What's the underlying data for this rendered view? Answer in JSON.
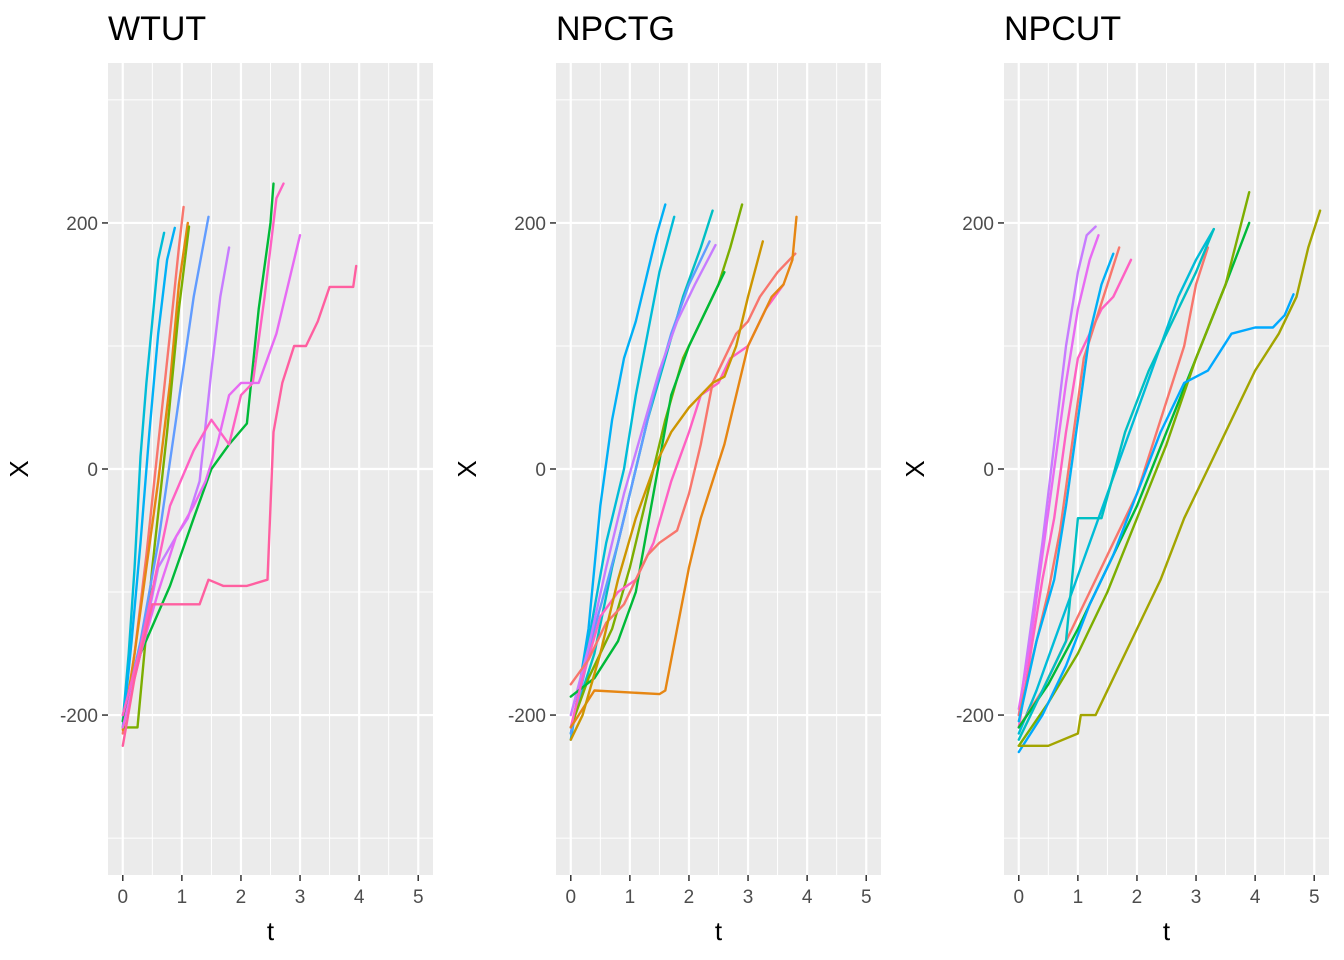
{
  "chart_data": [
    {
      "type": "line",
      "title": "WTUT",
      "xlabel": "t",
      "ylabel": "X",
      "xlim": [
        -0.25,
        5.25
      ],
      "ylim": [
        -330,
        330
      ],
      "xticks": [
        0,
        1,
        2,
        3,
        4,
        5
      ],
      "yticks": [
        -200,
        0,
        200
      ],
      "grid": true,
      "legend": "none",
      "series": [
        {
          "color": "#00BCD8",
          "x": [
            0,
            0.1,
            0.2,
            0.3,
            0.4,
            0.5,
            0.6,
            0.7
          ],
          "y": [
            -205,
            -150,
            -80,
            10,
            70,
            120,
            170,
            192
          ]
        },
        {
          "color": "#00B0F6",
          "x": [
            0,
            0.15,
            0.3,
            0.45,
            0.6,
            0.75,
            0.88
          ],
          "y": [
            -210,
            -140,
            -60,
            30,
            110,
            170,
            196
          ]
        },
        {
          "color": "#F8766D",
          "x": [
            0,
            0.2,
            0.4,
            0.6,
            0.8,
            0.95,
            1.03
          ],
          "y": [
            -215,
            -150,
            -70,
            20,
            110,
            180,
            213
          ]
        },
        {
          "color": "#E68613",
          "x": [
            0,
            0.2,
            0.4,
            0.6,
            0.8,
            0.95,
            1.1
          ],
          "y": [
            -212,
            -150,
            -80,
            -10,
            70,
            150,
            200
          ]
        },
        {
          "color": "#7CAE00",
          "x": [
            0,
            0.25,
            0.5,
            0.75,
            0.95,
            1.12
          ],
          "y": [
            -210,
            -210,
            -80,
            30,
            130,
            197
          ]
        },
        {
          "color": "#619CFF",
          "x": [
            0,
            0.3,
            0.6,
            0.9,
            1.2,
            1.45
          ],
          "y": [
            -205,
            -140,
            -60,
            40,
            140,
            205
          ]
        },
        {
          "color": "#C77CFF",
          "x": [
            0,
            0.3,
            0.6,
            0.9,
            1.1,
            1.3,
            1.5,
            1.65,
            1.8
          ],
          "y": [
            -200,
            -150,
            -80,
            -55,
            -40,
            -10,
            80,
            140,
            180
          ]
        },
        {
          "color": "#00BA38",
          "x": [
            0,
            0.3,
            0.8,
            1.2,
            1.5,
            1.8,
            2.1,
            2.3,
            2.5,
            2.55
          ],
          "y": [
            -205,
            -150,
            -95,
            -40,
            0,
            20,
            37,
            130,
            200,
            232
          ]
        },
        {
          "color": "#FF61C3",
          "x": [
            0,
            0.3,
            0.8,
            1.2,
            1.5,
            1.8,
            2.0,
            2.2,
            2.4,
            2.5,
            2.6,
            2.72
          ],
          "y": [
            -200,
            -145,
            -30,
            15,
            40,
            20,
            60,
            70,
            140,
            180,
            220,
            232
          ]
        },
        {
          "color": "#E76BF3",
          "x": [
            0,
            0.3,
            0.6,
            0.9,
            1.2,
            1.4,
            1.6,
            1.8,
            2.0,
            2.3,
            2.6,
            2.8,
            3.0
          ],
          "y": [
            -210,
            -150,
            -100,
            -55,
            -30,
            -10,
            20,
            60,
            70,
            70,
            110,
            150,
            190
          ]
        },
        {
          "color": "#FF5FA0",
          "x": [
            0,
            0.2,
            0.5,
            1.3,
            1.45,
            1.7,
            2.1,
            2.45,
            2.55,
            2.7,
            2.9,
            3.1,
            3.3,
            3.5,
            3.7,
            3.9,
            3.95
          ],
          "y": [
            -225,
            -170,
            -110,
            -110,
            -90,
            -95,
            -95,
            -90,
            30,
            70,
            100,
            100,
            120,
            148,
            148,
            148,
            165
          ]
        }
      ]
    },
    {
      "type": "line",
      "title": "NPCTG",
      "xlabel": "t",
      "ylabel": "X",
      "xlim": [
        -0.25,
        5.25
      ],
      "ylim": [
        -330,
        330
      ],
      "xticks": [
        0,
        1,
        2,
        3,
        4,
        5
      ],
      "yticks": [
        -200,
        0,
        200
      ],
      "grid": true,
      "legend": "none",
      "series": [
        {
          "color": "#00B0F6",
          "x": [
            0,
            0.3,
            0.5,
            0.7,
            0.9,
            1.1,
            1.3,
            1.45,
            1.6
          ],
          "y": [
            -220,
            -130,
            -30,
            40,
            90,
            120,
            160,
            190,
            215
          ]
        },
        {
          "color": "#00BCD8",
          "x": [
            0,
            0.3,
            0.6,
            0.9,
            1.1,
            1.3,
            1.5,
            1.75
          ],
          "y": [
            -215,
            -140,
            -60,
            0,
            60,
            110,
            160,
            205
          ]
        },
        {
          "color": "#00BFC4",
          "x": [
            0,
            0.4,
            0.7,
            1.0,
            1.3,
            1.6,
            1.9,
            2.2,
            2.4
          ],
          "y": [
            -210,
            -150,
            -80,
            -20,
            40,
            90,
            140,
            180,
            210
          ]
        },
        {
          "color": "#619CFF",
          "x": [
            0,
            0.4,
            0.8,
            1.1,
            1.4,
            1.7,
            2.0,
            2.2,
            2.35
          ],
          "y": [
            -215,
            -130,
            -60,
            0,
            60,
            110,
            150,
            170,
            185
          ]
        },
        {
          "color": "#C77CFF",
          "x": [
            0,
            0.3,
            0.6,
            0.9,
            1.2,
            1.5,
            1.8,
            2.1,
            2.45
          ],
          "y": [
            -200,
            -145,
            -80,
            -20,
            30,
            80,
            120,
            150,
            182
          ]
        },
        {
          "color": "#7CAE00",
          "x": [
            0,
            0.3,
            0.7,
            1.0,
            1.3,
            1.6,
            1.9,
            2.2,
            2.5,
            2.7,
            2.9
          ],
          "y": [
            -210,
            -170,
            -130,
            -80,
            -20,
            40,
            90,
            120,
            150,
            180,
            215
          ]
        },
        {
          "color": "#00BA38",
          "x": [
            0,
            0.4,
            0.8,
            1.1,
            1.4,
            1.7,
            2.0,
            2.3,
            2.6
          ],
          "y": [
            -185,
            -170,
            -140,
            -100,
            -20,
            60,
            100,
            130,
            160
          ]
        },
        {
          "color": "#FF61C3",
          "x": [
            0,
            0.2,
            0.5,
            0.8,
            1.1,
            1.4,
            1.7,
            2.0,
            2.2,
            2.5,
            2.7,
            3.0,
            3.3,
            3.6
          ],
          "y": [
            -210,
            -170,
            -120,
            -100,
            -90,
            -60,
            -10,
            30,
            60,
            70,
            90,
            100,
            130,
            150
          ]
        },
        {
          "color": "#F8766D",
          "x": [
            0,
            0.3,
            0.6,
            0.9,
            1.1,
            1.3,
            1.5,
            1.8,
            2.0,
            2.2,
            2.4,
            2.6,
            2.8,
            3.0,
            3.2,
            3.5,
            3.8
          ],
          "y": [
            -175,
            -155,
            -125,
            -110,
            -90,
            -70,
            -60,
            -50,
            -20,
            20,
            70,
            90,
            110,
            120,
            140,
            160,
            175
          ]
        },
        {
          "color": "#E68613",
          "x": [
            0,
            0.4,
            1.5,
            1.6,
            1.8,
            2.0,
            2.2,
            2.4,
            2.6,
            2.8,
            3.0,
            3.2,
            3.4,
            3.6,
            3.75,
            3.82
          ],
          "y": [
            -210,
            -180,
            -183,
            -180,
            -130,
            -80,
            -40,
            -10,
            20,
            60,
            100,
            120,
            140,
            150,
            170,
            205
          ]
        },
        {
          "color": "#CD9600",
          "x": [
            0,
            0.2,
            0.5,
            0.8,
            1.1,
            1.4,
            1.7,
            2.0,
            2.2,
            2.4,
            2.6,
            2.8,
            3.0,
            3.25
          ],
          "y": [
            -220,
            -200,
            -150,
            -90,
            -40,
            0,
            30,
            50,
            60,
            70,
            75,
            100,
            140,
            185
          ]
        }
      ]
    },
    {
      "type": "line",
      "title": "NPCUT",
      "xlabel": "t",
      "ylabel": "X",
      "xlim": [
        -0.25,
        5.25
      ],
      "ylim": [
        -330,
        330
      ],
      "xticks": [
        0,
        1,
        2,
        3,
        4,
        5
      ],
      "yticks": [
        -200,
        0,
        200
      ],
      "grid": true,
      "legend": "none",
      "series": [
        {
          "color": "#C77CFF",
          "x": [
            0,
            0.2,
            0.4,
            0.6,
            0.8,
            1.0,
            1.15,
            1.3
          ],
          "y": [
            -200,
            -130,
            -60,
            20,
            100,
            160,
            190,
            197
          ]
        },
        {
          "color": "#E76BF3",
          "x": [
            0,
            0.2,
            0.4,
            0.6,
            0.8,
            1.0,
            1.2,
            1.35
          ],
          "y": [
            -195,
            -140,
            -70,
            0,
            70,
            130,
            170,
            190
          ]
        },
        {
          "color": "#FF61C3",
          "x": [
            0,
            0.2,
            0.4,
            0.6,
            0.8,
            1.0,
            1.2,
            1.4,
            1.6,
            1.9
          ],
          "y": [
            -210,
            -150,
            -90,
            -40,
            30,
            90,
            110,
            130,
            140,
            170
          ]
        },
        {
          "color": "#F8766D",
          "x": [
            0,
            0.3,
            0.5,
            0.7,
            0.9,
            1.1,
            1.3,
            1.5,
            1.7
          ],
          "y": [
            -200,
            -140,
            -100,
            -50,
            20,
            90,
            120,
            150,
            180
          ]
        },
        {
          "color": "#00B0F6",
          "x": [
            0,
            0.3,
            0.6,
            0.8,
            1.0,
            1.2,
            1.4,
            1.6
          ],
          "y": [
            -205,
            -140,
            -90,
            -30,
            40,
            110,
            150,
            175
          ]
        },
        {
          "color": "#00BCD8",
          "x": [
            0,
            0.3,
            0.6,
            0.9,
            1.2,
            1.5,
            1.8,
            2.1,
            2.4,
            2.7,
            3.0,
            3.3
          ],
          "y": [
            -215,
            -180,
            -140,
            -100,
            -60,
            -20,
            20,
            60,
            100,
            140,
            170,
            195
          ]
        },
        {
          "color": "#F8766D",
          "x": [
            0,
            0.4,
            0.8,
            1.2,
            1.6,
            2.0,
            2.4,
            2.8,
            3.0,
            3.2
          ],
          "y": [
            -210,
            -180,
            -140,
            -100,
            -60,
            -20,
            40,
            100,
            150,
            180
          ]
        },
        {
          "color": "#00BA38",
          "x": [
            0,
            0.5,
            1.0,
            1.5,
            2.0,
            2.5,
            3.0,
            3.5,
            3.9
          ],
          "y": [
            -210,
            -175,
            -130,
            -80,
            -30,
            30,
            90,
            150,
            200
          ]
        },
        {
          "color": "#7CAE00",
          "x": [
            0,
            0.5,
            1.0,
            1.5,
            2.0,
            2.5,
            3.0,
            3.5,
            3.9
          ],
          "y": [
            -225,
            -190,
            -150,
            -100,
            -40,
            20,
            90,
            150,
            225
          ]
        },
        {
          "color": "#00BFC4",
          "x": [
            0,
            0.4,
            0.8,
            1.0,
            1.4,
            1.8,
            2.2,
            2.6,
            3.0,
            3.3
          ],
          "y": [
            -220,
            -180,
            -140,
            -40,
            -40,
            30,
            80,
            120,
            160,
            195
          ]
        },
        {
          "color": "#00A9FF",
          "x": [
            0,
            0.4,
            0.8,
            1.2,
            1.6,
            2.0,
            2.4,
            2.8,
            3.2,
            3.6,
            4.0,
            4.3,
            4.5,
            4.65
          ],
          "y": [
            -230,
            -200,
            -160,
            -110,
            -70,
            -20,
            30,
            70,
            80,
            110,
            115,
            115,
            125,
            142
          ]
        },
        {
          "color": "#A3A500",
          "x": [
            0,
            0.5,
            1.0,
            1.05,
            1.3,
            1.6,
            2.0,
            2.4,
            2.8,
            3.2,
            3.6,
            4.0,
            4.4,
            4.7,
            4.9,
            5.1
          ],
          "y": [
            -225,
            -225,
            -215,
            -200,
            -200,
            -170,
            -130,
            -90,
            -40,
            0,
            40,
            80,
            110,
            140,
            180,
            210
          ]
        }
      ]
    }
  ]
}
